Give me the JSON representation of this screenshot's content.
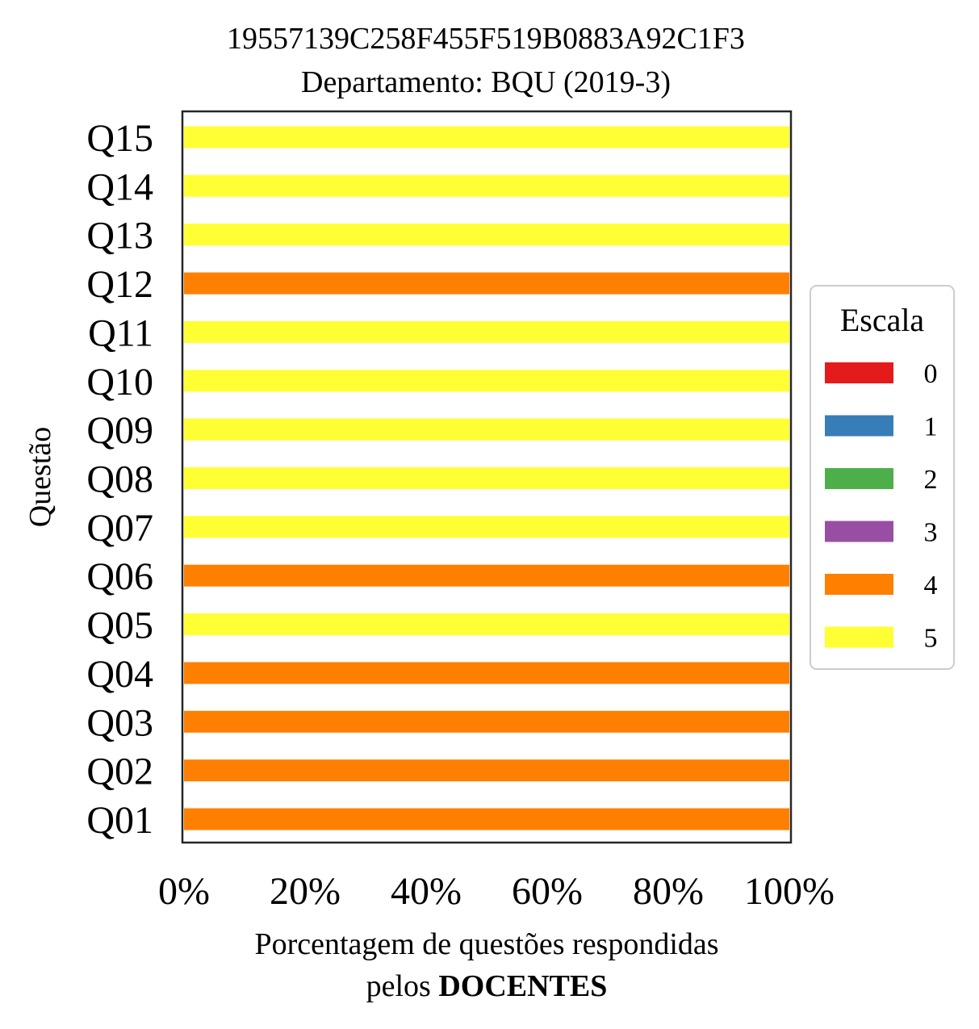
{
  "chart_data": {
    "type": "bar",
    "orientation": "horizontal",
    "stacked": true,
    "title_lines": [
      "19557139C258F455F519B0883A92C1F3",
      "Departamento: BQU (2019-3)"
    ],
    "xlabel_prefix": "Porcentagem de questões respondidas",
    "xlabel_line2_plain": "pelos ",
    "xlabel_line2_bold": "DOCENTES",
    "ylabel": "Questão",
    "categories": [
      "Q01",
      "Q02",
      "Q03",
      "Q04",
      "Q05",
      "Q06",
      "Q07",
      "Q08",
      "Q09",
      "Q10",
      "Q11",
      "Q12",
      "Q13",
      "Q14",
      "Q15"
    ],
    "xlim": [
      0,
      100
    ],
    "xticks": [
      0,
      20,
      40,
      60,
      80,
      100
    ],
    "xtick_labels": [
      "0%",
      "20%",
      "40%",
      "60%",
      "80%",
      "100%"
    ],
    "grid": false,
    "legend": {
      "title": "Escala",
      "placement": "right"
    },
    "series": [
      {
        "name": "0",
        "color": "#e41a1c",
        "values": [
          0,
          0,
          0,
          0,
          0,
          0,
          0,
          0,
          0,
          0,
          0,
          0,
          0,
          0,
          0
        ]
      },
      {
        "name": "1",
        "color": "#377eb8",
        "values": [
          0,
          0,
          0,
          0,
          0,
          0,
          0,
          0,
          0,
          0,
          0,
          0,
          0,
          0,
          0
        ]
      },
      {
        "name": "2",
        "color": "#4daf4a",
        "values": [
          0,
          0,
          0,
          0,
          0,
          0,
          0,
          0,
          0,
          0,
          0,
          0,
          0,
          0,
          0
        ]
      },
      {
        "name": "3",
        "color": "#984ea3",
        "values": [
          0,
          0,
          0,
          0,
          0,
          0,
          0,
          0,
          0,
          0,
          0,
          0,
          0,
          0,
          0
        ]
      },
      {
        "name": "4",
        "color": "#ff7f00",
        "values": [
          100,
          100,
          100,
          100,
          0,
          100,
          0,
          0,
          0,
          0,
          0,
          100,
          0,
          0,
          0
        ]
      },
      {
        "name": "5",
        "color": "#ffff33",
        "values": [
          0,
          0,
          0,
          0,
          100,
          0,
          100,
          100,
          100,
          100,
          100,
          0,
          100,
          100,
          100
        ]
      }
    ]
  }
}
